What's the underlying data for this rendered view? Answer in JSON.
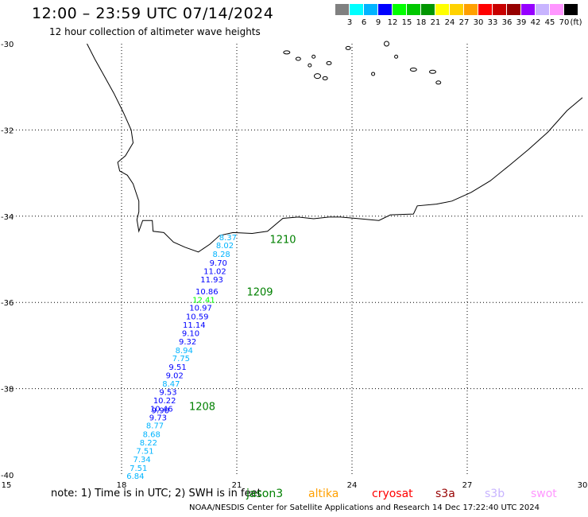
{
  "header": {
    "title": "12:00 – 23:59 UTC 07/14/2024",
    "subtitle": "12 hour collection of altimeter wave heights"
  },
  "colorbar": {
    "colors": [
      "#808080",
      "#00ffff",
      "#00b4ff",
      "#0000ff",
      "#00ff00",
      "#00c800",
      "#009600",
      "#ffff00",
      "#ffd200",
      "#ffa000",
      "#ff0000",
      "#c80000",
      "#960000",
      "#9600ff",
      "#c8b4ff",
      "#ff96ff",
      "#000000"
    ],
    "labels": [
      "3",
      "6",
      "9",
      "12",
      "15",
      "18",
      "21",
      "24",
      "27",
      "30",
      "33",
      "36",
      "39",
      "42",
      "45",
      "70"
    ],
    "unit": "(ft)"
  },
  "map": {
    "lon_range": [
      15,
      30
    ],
    "lat_range": [
      -40,
      -30
    ],
    "x_ticks": [
      "15",
      "18",
      "21",
      "24",
      "27",
      "30"
    ],
    "y_ticks": [
      "-30",
      "-32",
      "-34",
      "-36",
      "-38",
      "-40"
    ],
    "grid": "dotted",
    "wave_heights": [
      {
        "lat": -34.48,
        "lon": 20.77,
        "v": "8.37",
        "c": "#00b4ff"
      },
      {
        "lat": -34.67,
        "lon": 20.69,
        "v": "8.02",
        "c": "#00b4ff"
      },
      {
        "lat": -34.87,
        "lon": 20.6,
        "v": "8.28",
        "c": "#00b4ff"
      },
      {
        "lat": -35.07,
        "lon": 20.52,
        "v": "9.70",
        "c": "#0000ff"
      },
      {
        "lat": -35.27,
        "lon": 20.43,
        "v": "11.02",
        "c": "#0000ff"
      },
      {
        "lat": -35.46,
        "lon": 20.35,
        "v": "11.93",
        "c": "#0000ff"
      },
      {
        "lat": -35.74,
        "lon": 20.22,
        "v": "10.86",
        "c": "#0000ff"
      },
      {
        "lat": -35.93,
        "lon": 20.14,
        "v": "12.41",
        "c": "#00ff00"
      },
      {
        "lat": -36.12,
        "lon": 20.06,
        "v": "10.97",
        "c": "#0000ff"
      },
      {
        "lat": -36.32,
        "lon": 19.97,
        "v": "10.59",
        "c": "#0000ff"
      },
      {
        "lat": -36.51,
        "lon": 19.89,
        "v": "11.14",
        "c": "#0000ff"
      },
      {
        "lat": -36.71,
        "lon": 19.8,
        "v": "9.10",
        "c": "#0000ff"
      },
      {
        "lat": -36.9,
        "lon": 19.72,
        "v": "9.32",
        "c": "#0000ff"
      },
      {
        "lat": -37.1,
        "lon": 19.63,
        "v": "8.94",
        "c": "#00b4ff"
      },
      {
        "lat": -37.29,
        "lon": 19.55,
        "v": "7.75",
        "c": "#00b4ff"
      },
      {
        "lat": -37.49,
        "lon": 19.46,
        "v": "9.51",
        "c": "#0000ff"
      },
      {
        "lat": -37.68,
        "lon": 19.38,
        "v": "9.02",
        "c": "#0000ff"
      },
      {
        "lat": -37.88,
        "lon": 19.29,
        "v": "8.47",
        "c": "#00b4ff"
      },
      {
        "lat": -38.07,
        "lon": 19.21,
        "v": "9.53",
        "c": "#0000ff"
      },
      {
        "lat": -38.27,
        "lon": 19.12,
        "v": "10.22",
        "c": "#0000ff"
      },
      {
        "lat": -38.46,
        "lon": 19.04,
        "v": "10.46",
        "c": "#0000ff"
      },
      {
        "lat": -38.5,
        "lon": 19.01,
        "v": "9.90",
        "c": "#0000ff"
      },
      {
        "lat": -38.66,
        "lon": 18.95,
        "v": "9.73",
        "c": "#0000ff"
      },
      {
        "lat": -38.85,
        "lon": 18.87,
        "v": "8.77",
        "c": "#00b4ff"
      },
      {
        "lat": -39.05,
        "lon": 18.78,
        "v": "8.68",
        "c": "#00b4ff"
      },
      {
        "lat": -39.24,
        "lon": 18.7,
        "v": "8.22",
        "c": "#00b4ff"
      },
      {
        "lat": -39.44,
        "lon": 18.61,
        "v": "7.51",
        "c": "#00b4ff"
      },
      {
        "lat": -39.63,
        "lon": 18.53,
        "v": "7.34",
        "c": "#00b4ff"
      },
      {
        "lat": -39.83,
        "lon": 18.44,
        "v": "7.51",
        "c": "#00b4ff"
      },
      {
        "lat": -40.02,
        "lon": 18.36,
        "v": "6.84",
        "c": "#00b4ff"
      }
    ],
    "pass_labels": [
      {
        "lat": -34.53,
        "lon": 22.2,
        "text": "1210"
      },
      {
        "lat": -35.75,
        "lon": 21.6,
        "text": "1209"
      },
      {
        "lat": -38.4,
        "lon": 20.1,
        "text": "1208"
      }
    ],
    "pass_label_color": "#008000"
  },
  "footer": {
    "note": "note: 1) Time is in UTC; 2) SWH is in feet",
    "satellites": [
      {
        "name": "jason3",
        "color": "#008000"
      },
      {
        "name": "altika",
        "color": "#ffa000"
      },
      {
        "name": "cryosat",
        "color": "#ff0000"
      },
      {
        "name": "s3a",
        "color": "#960000"
      },
      {
        "name": "s3b",
        "color": "#c8b4ff"
      },
      {
        "name": "swot",
        "color": "#ff96ff"
      }
    ],
    "credit": "NOAA/NESDIS Center for Satellite Applications and Research   14 Dec 17:22:40 UTC 2024"
  }
}
